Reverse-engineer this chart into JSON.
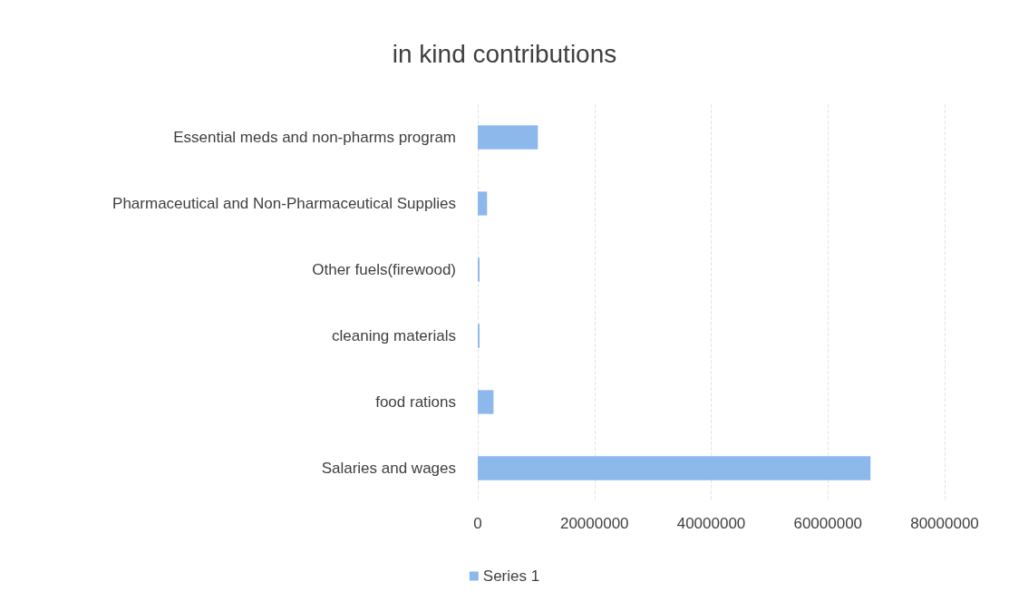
{
  "chart_data": {
    "type": "bar",
    "title": "in kind contributions",
    "orientation": "horizontal",
    "categories": [
      "Essential meds and non-pharms program",
      "Pharmaceutical and Non-Pharmaceutical Supplies",
      "Other fuels(firewood)",
      "cleaning materials",
      "food rations",
      "Salaries and wages"
    ],
    "series": [
      {
        "name": "Series 1",
        "color": "#8db8ec",
        "values": [
          10300000,
          1600000,
          300000,
          300000,
          2700000,
          67300000
        ]
      }
    ],
    "xlim": [
      0,
      80000000
    ],
    "xticks": [
      0,
      20000000,
      40000000,
      60000000,
      80000000
    ],
    "grid": "x",
    "legend": "bottom"
  }
}
